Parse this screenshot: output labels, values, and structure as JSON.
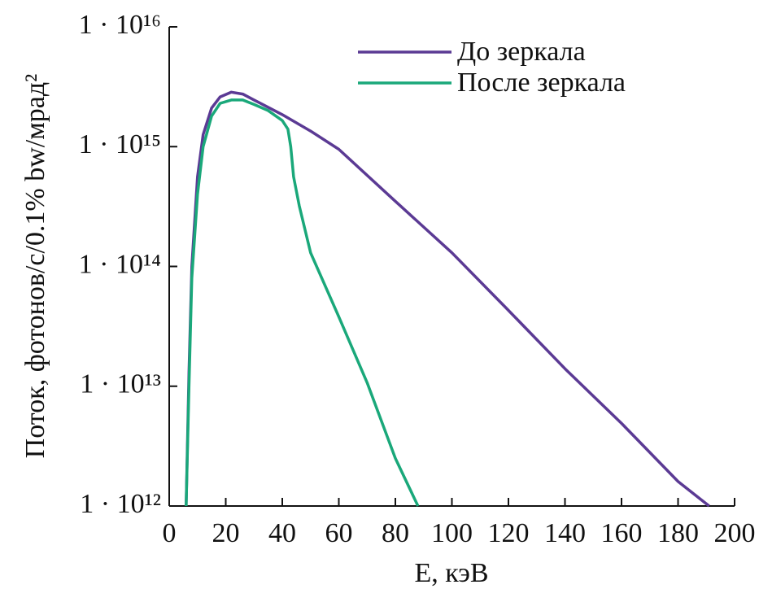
{
  "chart_data": {
    "type": "line",
    "xlabel": "E, кэВ",
    "ylabel": "Поток, фотонов/с/0.1% bw/мрад²",
    "xlim": [
      0,
      200
    ],
    "xticks": [
      0,
      20,
      40,
      60,
      80,
      100,
      120,
      140,
      160,
      180,
      200
    ],
    "ylim": [
      1000000000000.0,
      1e+16
    ],
    "log_y": true,
    "yticks": [
      {
        "value": 1000000000000.0,
        "label": "1 · 10¹²"
      },
      {
        "value": 10000000000000.0,
        "label": "1 · 10¹³"
      },
      {
        "value": 100000000000000.0,
        "label": "1 · 10¹⁴"
      },
      {
        "value": 1000000000000000.0,
        "label": "1 · 10¹⁵"
      },
      {
        "value": 1e+16,
        "label": "1 · 10¹⁶"
      }
    ],
    "grid": false,
    "legend": "upper right",
    "series": [
      {
        "name": "До зеркала",
        "color": "#5b3a94",
        "x": [
          6,
          7,
          8,
          10,
          12,
          15,
          18,
          22,
          26,
          30,
          40,
          50,
          60,
          80,
          100,
          120,
          140,
          160,
          180,
          191
        ],
        "values": [
          1000000000000.0,
          13000000000000.0,
          100000000000000.0,
          560000000000000.0,
          1260000000000000.0,
          2100000000000000.0,
          2600000000000000.0,
          2850000000000000.0,
          2750000000000000.0,
          2450000000000000.0,
          1850000000000000.0,
          1350000000000000.0,
          950000000000000.0,
          350000000000000.0,
          130000000000000.0,
          43000000000000.0,
          14000000000000.0,
          4900000000000.0,
          1600000000000.0,
          1000000000000.0
        ]
      },
      {
        "name": "После зеркала",
        "color": "#1aa87a",
        "x": [
          6,
          7,
          8,
          10,
          12,
          15,
          18,
          22,
          26,
          30,
          35,
          40,
          42,
          43,
          44,
          46,
          50,
          60,
          70,
          80,
          88
        ],
        "values": [
          1000000000000.0,
          10000000000000.0,
          80000000000000.0,
          400000000000000.0,
          1000000000000000.0,
          1800000000000000.0,
          2300000000000000.0,
          2450000000000000.0,
          2450000000000000.0,
          2250000000000000.0,
          2000000000000000.0,
          1650000000000000.0,
          1400000000000000.0,
          1000000000000000.0,
          560000000000000.0,
          320000000000000.0,
          130000000000000.0,
          38000000000000.0,
          10700000000000.0,
          2500000000000.0,
          1000000000000.0
        ]
      }
    ]
  }
}
